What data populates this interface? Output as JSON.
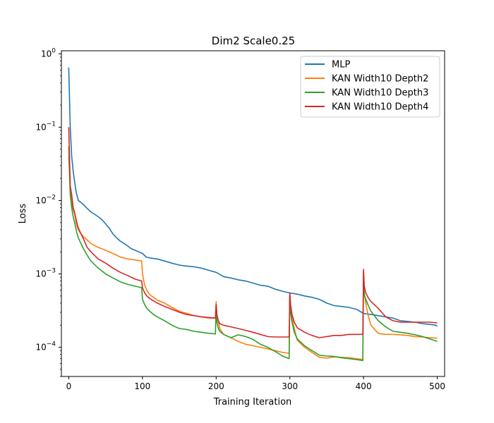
{
  "chart_data": {
    "type": "line",
    "title": "Dim2 Scale0.25",
    "xlabel": "Training Iteration",
    "ylabel": "Loss",
    "yscale": "log",
    "xlim": [
      -10,
      510
    ],
    "ylim": [
      4e-05,
      1.1
    ],
    "x_ticks": [
      0,
      100,
      200,
      300,
      400,
      500
    ],
    "x_tick_labels": [
      "0",
      "100",
      "200",
      "300",
      "400",
      "500"
    ],
    "y_ticks": [
      0.0001,
      0.001,
      0.01,
      0.1,
      1
    ],
    "y_tick_bases": [
      "10",
      "10",
      "10",
      "10",
      "10"
    ],
    "y_tick_exps": [
      "−4",
      "−3",
      "−2",
      "−1",
      "0"
    ],
    "legend_position": "top-right",
    "series": [
      {
        "name": "MLP",
        "color": "#1f77b4",
        "x": [
          0,
          2,
          4,
          6,
          8,
          10,
          13,
          16,
          20,
          25,
          30,
          35,
          40,
          45,
          50,
          55,
          60,
          65,
          70,
          75,
          80,
          85,
          90,
          95,
          100,
          105,
          110,
          120,
          130,
          140,
          150,
          160,
          170,
          180,
          190,
          200,
          210,
          220,
          230,
          240,
          250,
          260,
          270,
          280,
          290,
          300,
          310,
          320,
          330,
          340,
          350,
          360,
          370,
          380,
          390,
          400,
          410,
          420,
          430,
          440,
          450,
          460,
          470,
          480,
          490,
          498,
          500
        ],
        "y": [
          0.65,
          0.1,
          0.04,
          0.025,
          0.018,
          0.013,
          0.01,
          0.0095,
          0.0088,
          0.0078,
          0.007,
          0.0065,
          0.006,
          0.0055,
          0.0048,
          0.0042,
          0.0035,
          0.0031,
          0.0028,
          0.0026,
          0.0024,
          0.0022,
          0.0021,
          0.002,
          0.0019,
          0.0017,
          0.00165,
          0.0016,
          0.0015,
          0.0014,
          0.00132,
          0.00128,
          0.00125,
          0.0012,
          0.00112,
          0.00105,
          0.00092,
          0.00088,
          0.00083,
          0.0008,
          0.00075,
          0.0007,
          0.00068,
          0.00062,
          0.00058,
          0.00055,
          0.00053,
          0.0005,
          0.00048,
          0.00045,
          0.0004,
          0.00037,
          0.00036,
          0.00035,
          0.00033,
          0.00029,
          0.00028,
          0.00027,
          0.00026,
          0.00025,
          0.00023,
          0.000225,
          0.00022,
          0.00021,
          0.000205,
          0.0002,
          0.000193
        ]
      },
      {
        "name": "KAN Width10 Depth2",
        "color": "#ff7f0e",
        "x": [
          0,
          2,
          4,
          6,
          8,
          10,
          12,
          15,
          20,
          25,
          30,
          40,
          50,
          60,
          70,
          80,
          90,
          99,
          100,
          103,
          106,
          110,
          115,
          120,
          130,
          140,
          150,
          160,
          170,
          180,
          190,
          199,
          200,
          201,
          203,
          205,
          210,
          220,
          230,
          240,
          250,
          260,
          270,
          280,
          290,
          299,
          300,
          301,
          303,
          306,
          310,
          320,
          330,
          340,
          350,
          360,
          370,
          380,
          390,
          399,
          400,
          401,
          403,
          406,
          410,
          420,
          430,
          440,
          450,
          460,
          470,
          480,
          490,
          500
        ],
        "y": [
          0.04,
          0.015,
          0.009,
          0.0075,
          0.0065,
          0.005,
          0.0042,
          0.0037,
          0.0032,
          0.0029,
          0.0026,
          0.0023,
          0.0021,
          0.0019,
          0.0017,
          0.0016,
          0.00155,
          0.0015,
          0.001,
          0.0007,
          0.0006,
          0.00052,
          0.00048,
          0.00044,
          0.0004,
          0.00035,
          0.00031,
          0.00029,
          0.00027,
          0.00026,
          0.00025,
          0.00025,
          0.00042,
          0.00028,
          0.00022,
          0.00018,
          0.00015,
          0.000135,
          0.00012,
          0.00011,
          0.000105,
          0.0001,
          9.5e-05,
          9e-05,
          8.5e-05,
          8.3e-05,
          0.00053,
          0.00035,
          0.00025,
          0.00018,
          0.000125,
          0.0001,
          8.5e-05,
          7.3e-05,
          7.1e-05,
          7.4e-05,
          7.3e-05,
          7.2e-05,
          7e-05,
          6.8e-05,
          0.0011,
          0.00055,
          0.0004,
          0.00028,
          0.0002,
          0.000155,
          0.00015,
          0.00015,
          0.000148,
          0.000145,
          0.00014,
          0.000138,
          0.000135,
          0.000133
        ]
      },
      {
        "name": "KAN Width10 Depth3",
        "color": "#2ca02c",
        "x": [
          0,
          2,
          4,
          6,
          8,
          10,
          12,
          15,
          20,
          25,
          30,
          40,
          50,
          60,
          70,
          80,
          90,
          99,
          100,
          103,
          106,
          110,
          115,
          120,
          130,
          140,
          150,
          160,
          170,
          180,
          190,
          199,
          200,
          201,
          203,
          205,
          210,
          220,
          230,
          240,
          250,
          260,
          270,
          280,
          290,
          299,
          300,
          301,
          303,
          306,
          310,
          320,
          330,
          340,
          350,
          360,
          370,
          380,
          390,
          399,
          400,
          401,
          403,
          406,
          410,
          420,
          430,
          440,
          450,
          460,
          470,
          480,
          490,
          500
        ],
        "y": [
          0.055,
          0.012,
          0.008,
          0.006,
          0.005,
          0.004,
          0.0033,
          0.0028,
          0.0022,
          0.0018,
          0.0015,
          0.0012,
          0.001,
          0.00088,
          0.00078,
          0.00072,
          0.00068,
          0.00065,
          0.00045,
          0.00038,
          0.00034,
          0.00031,
          0.00028,
          0.00026,
          0.00023,
          0.0002,
          0.00018,
          0.000175,
          0.000165,
          0.00016,
          0.000155,
          0.000152,
          0.00035,
          0.00022,
          0.00018,
          0.000165,
          0.00015,
          0.000135,
          0.000148,
          0.00014,
          0.000128,
          0.00011,
          0.0001,
          8.8e-05,
          7.6e-05,
          7e-05,
          0.00052,
          0.0003,
          0.00022,
          0.00016,
          0.00013,
          0.000105,
          9e-05,
          7.8e-05,
          7.6e-05,
          7.5e-05,
          7.2e-05,
          7e-05,
          6.8e-05,
          6.6e-05,
          0.0008,
          0.00052,
          0.00045,
          0.00038,
          0.00031,
          0.00023,
          0.00019,
          0.000165,
          0.00016,
          0.000155,
          0.000148,
          0.00014,
          0.00013,
          0.00012
        ]
      },
      {
        "name": "KAN Width10 Depth4",
        "color": "#d62728",
        "x": [
          0,
          2,
          4,
          6,
          8,
          10,
          12,
          15,
          20,
          25,
          30,
          40,
          50,
          60,
          70,
          80,
          90,
          99,
          100,
          103,
          106,
          110,
          115,
          120,
          130,
          140,
          150,
          160,
          170,
          180,
          190,
          199,
          200,
          201,
          203,
          205,
          210,
          220,
          230,
          240,
          250,
          260,
          270,
          280,
          290,
          299,
          300,
          301,
          303,
          306,
          310,
          320,
          330,
          340,
          350,
          360,
          370,
          380,
          390,
          399,
          400,
          401,
          403,
          406,
          410,
          420,
          430,
          440,
          450,
          460,
          470,
          480,
          490,
          500
        ],
        "y": [
          0.1,
          0.016,
          0.012,
          0.008,
          0.0068,
          0.0055,
          0.0045,
          0.0038,
          0.003,
          0.0023,
          0.002,
          0.0016,
          0.0014,
          0.0012,
          0.00105,
          0.00095,
          0.00085,
          0.0008,
          0.00065,
          0.00055,
          0.0005,
          0.00046,
          0.00043,
          0.0004,
          0.00036,
          0.00033,
          0.0003,
          0.00028,
          0.00027,
          0.00026,
          0.000255,
          0.00025,
          0.00038,
          0.00028,
          0.00023,
          0.00021,
          0.0002,
          0.00019,
          0.00018,
          0.00017,
          0.00016,
          0.00015,
          0.00014,
          0.000138,
          0.000138,
          0.000138,
          0.00055,
          0.00038,
          0.00028,
          0.00022,
          0.000185,
          0.00016,
          0.000145,
          0.000135,
          0.00014,
          0.000145,
          0.000145,
          0.00015,
          0.00015,
          0.00015,
          0.00115,
          0.00068,
          0.00055,
          0.00048,
          0.00042,
          0.00034,
          0.00026,
          0.00023,
          0.00022,
          0.00022,
          0.00022,
          0.00022,
          0.00022,
          0.000215
        ]
      }
    ]
  }
}
